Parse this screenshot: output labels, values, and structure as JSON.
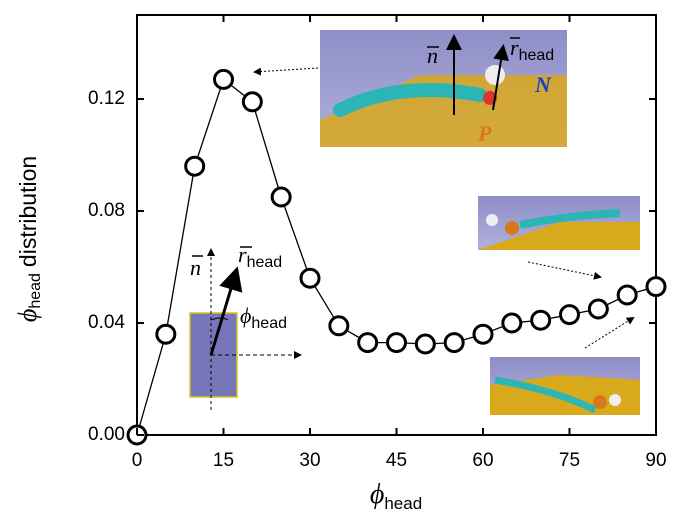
{
  "chart_data": {
    "type": "line",
    "xlabel": {
      "symbol": "ϕ",
      "sub": "head"
    },
    "ylabel": {
      "symbol": "ϕ",
      "sub": "head",
      "rest": "distribution"
    },
    "x": [
      0,
      5,
      10,
      15,
      20,
      25,
      30,
      35,
      40,
      45,
      50,
      55,
      60,
      65,
      70,
      75,
      80,
      85,
      90
    ],
    "series": [
      {
        "color": "#000000",
        "values": [
          0.0,
          0.036,
          0.096,
          0.127,
          0.119,
          0.085,
          0.056,
          0.039,
          0.033,
          0.033,
          0.0325,
          0.033,
          0.036,
          0.04,
          0.041,
          0.043,
          0.045,
          0.05,
          0.053
        ]
      }
    ],
    "xlim": [
      0,
      90
    ],
    "ylim": [
      0,
      0.15
    ],
    "xticks": [
      0,
      15,
      30,
      45,
      60,
      75,
      90
    ],
    "yticks": [
      {
        "value": 0,
        "label": "0.00"
      },
      0.04,
      0.08,
      0.12
    ],
    "annotations": [
      {
        "text": "n"
      },
      {
        "text": "r",
        "sub": "head"
      },
      {
        "text": "N"
      },
      {
        "text": "P"
      },
      {
        "text": "n"
      },
      {
        "text": "r",
        "sub": "head"
      },
      {
        "text": "ϕ",
        "sub": "head"
      }
    ]
  }
}
